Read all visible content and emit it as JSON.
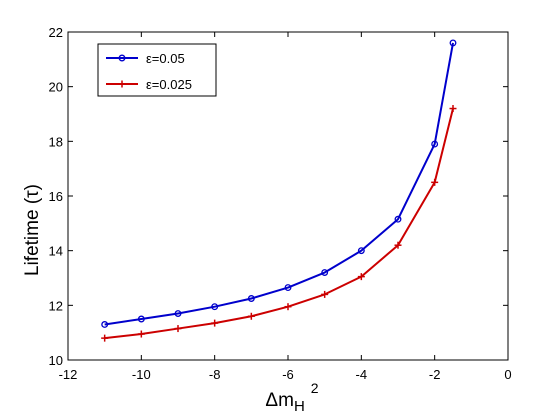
{
  "chart_data": {
    "type": "line",
    "xlim": [
      -12,
      0
    ],
    "ylim": [
      10,
      22
    ],
    "xticks": [
      -12,
      -10,
      -8,
      -6,
      -4,
      -2,
      0
    ],
    "yticks": [
      10,
      12,
      14,
      16,
      18,
      20,
      22
    ],
    "xlabel": "Δm",
    "xlabel_sub": "H",
    "xlabel_sup": "2",
    "ylabel": "Lifetime (τ)",
    "grid": false,
    "legend_position": "top-left",
    "series": [
      {
        "name": "ε=0.05",
        "color": "#0000cc",
        "marker": "circle",
        "x": [
          -11,
          -10,
          -9,
          -8,
          -7,
          -6,
          -5,
          -4,
          -3,
          -2,
          -1.5
        ],
        "y": [
          11.3,
          11.5,
          11.7,
          11.95,
          12.25,
          12.65,
          13.2,
          14.0,
          15.15,
          17.9,
          21.6
        ]
      },
      {
        "name": "ε=0.025",
        "color": "#cc0000",
        "marker": "plus",
        "x": [
          -11,
          -10,
          -9,
          -8,
          -7,
          -6,
          -5,
          -4,
          -3,
          -2,
          -1.5
        ],
        "y": [
          10.8,
          10.95,
          11.15,
          11.35,
          11.6,
          11.95,
          12.4,
          13.05,
          14.2,
          16.5,
          19.2
        ]
      }
    ]
  }
}
